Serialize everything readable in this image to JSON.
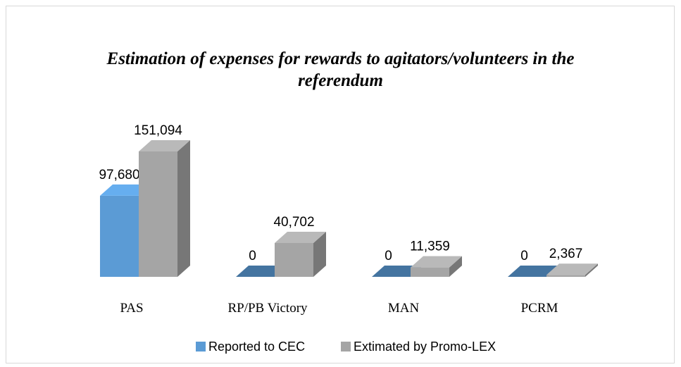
{
  "chart_data": {
    "type": "bar3d",
    "title": "Estimation of expenses for rewards to agitators/volunteers in the referendum",
    "categories": [
      "PAS",
      "RP/PB Victory",
      "MAN",
      "PCRM"
    ],
    "series": [
      {
        "name": "Reported to CEC",
        "color": "#5b9bd5",
        "values": [
          97680,
          0,
          0,
          0
        ],
        "value_labels": [
          "97,680",
          "0",
          "0",
          "0"
        ]
      },
      {
        "name": "Extimated by Promo-LEX",
        "color": "#a5a5a5",
        "values": [
          151094,
          40702,
          11359,
          2367
        ],
        "value_labels": [
          "151,094",
          "40,702",
          "11,359",
          "2,367"
        ]
      }
    ],
    "legend": "bottom"
  }
}
